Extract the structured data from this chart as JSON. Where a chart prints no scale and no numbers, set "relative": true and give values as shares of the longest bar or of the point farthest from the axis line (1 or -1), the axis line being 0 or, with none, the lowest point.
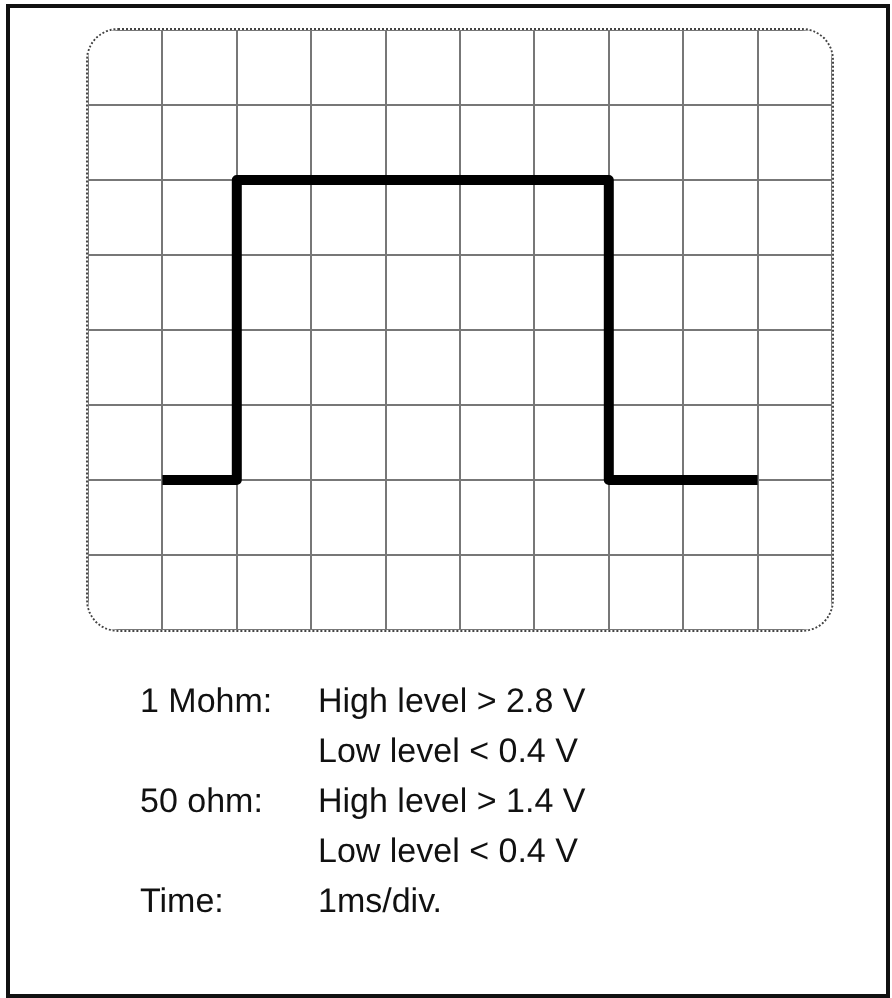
{
  "chart_data": {
    "type": "step",
    "relative": true,
    "categories": [
      null,
      null,
      null,
      null,
      null,
      null,
      null,
      null,
      null
    ],
    "series": [
      {
        "color": "#000000",
        "values": [
          -1,
          1,
          1,
          1,
          1,
          1,
          -1,
          -1,
          -1
        ]
      }
    ],
    "grid": true,
    "legend": false,
    "marker": "none",
    "line_style": "solid",
    "annotations": [
      "1 Mohm: High level > 2.8 V",
      "Low level < 0.4 V",
      "50 ohm: High level > 1.4 V",
      "Low level < 0.4 V",
      "Time: 1ms/div."
    ]
  }
}
